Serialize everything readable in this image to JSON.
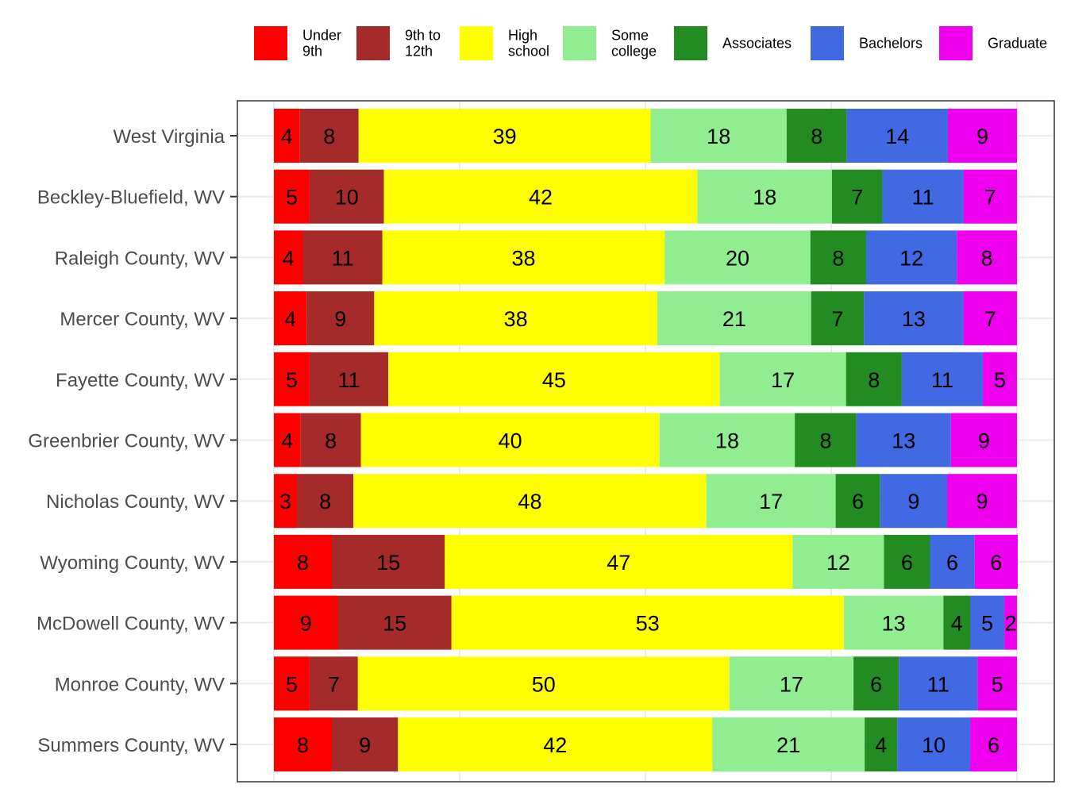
{
  "chart_data": {
    "type": "bar",
    "orientation": "horizontal",
    "stacked": true,
    "categories": [
      "West Virginia",
      "Beckley-Bluefield, WV",
      "Raleigh County, WV",
      "Mercer County, WV",
      "Fayette County, WV",
      "Greenbrier County, WV",
      "Nicholas County, WV",
      "Wyoming County, WV",
      "McDowell County, WV",
      "Monroe County, WV",
      "Summers County, WV"
    ],
    "series": [
      {
        "name": "Under 9th",
        "legend_lines": [
          "Under",
          "9th"
        ],
        "color": "#ff0000",
        "values": [
          3.5,
          4.8,
          3.9,
          4.4,
          4.8,
          3.6,
          3.1,
          7.8,
          8.6,
          4.8,
          7.8
        ]
      },
      {
        "name": "9th to 12th",
        "legend_lines": [
          "9th to",
          "12th"
        ],
        "color": "#a52a2a",
        "values": [
          7.9,
          10.0,
          10.7,
          9.1,
          10.6,
          8.1,
          7.6,
          15.2,
          15.3,
          6.5,
          8.9
        ]
      },
      {
        "name": "High school",
        "legend_lines": [
          "High",
          "school"
        ],
        "color": "#ffff00",
        "values": [
          39.3,
          42.2,
          38.0,
          38.1,
          44.6,
          40.2,
          47.5,
          46.8,
          52.8,
          50.0,
          42.3
        ]
      },
      {
        "name": "Some college",
        "legend_lines": [
          "Some",
          "college"
        ],
        "color": "#90ee90",
        "values": [
          18.3,
          18.1,
          19.6,
          20.7,
          17.0,
          18.2,
          17.4,
          12.3,
          13.4,
          16.7,
          20.5
        ]
      },
      {
        "name": "Associates",
        "legend_lines": [
          "Associates"
        ],
        "color": "#228b22",
        "values": [
          8.1,
          6.8,
          7.5,
          7.1,
          7.5,
          8.3,
          6.0,
          6.2,
          3.6,
          6.1,
          4.4
        ]
      },
      {
        "name": "Bachelors",
        "legend_lines": [
          "Bachelors"
        ],
        "color": "#4169e1",
        "values": [
          13.6,
          10.9,
          12.2,
          13.4,
          10.9,
          12.7,
          9.0,
          6.0,
          4.6,
          10.6,
          9.8
        ]
      },
      {
        "name": "Graduate",
        "legend_lines": [
          "Graduate"
        ],
        "color": "#ee00ee",
        "values": [
          9.3,
          7.2,
          8.1,
          7.2,
          4.6,
          8.9,
          9.4,
          5.8,
          1.7,
          5.3,
          6.3
        ]
      }
    ],
    "xlim": [
      0,
      100
    ],
    "xlabel": "",
    "ylabel": "",
    "title": "",
    "grid": true,
    "legend_position": "top"
  }
}
